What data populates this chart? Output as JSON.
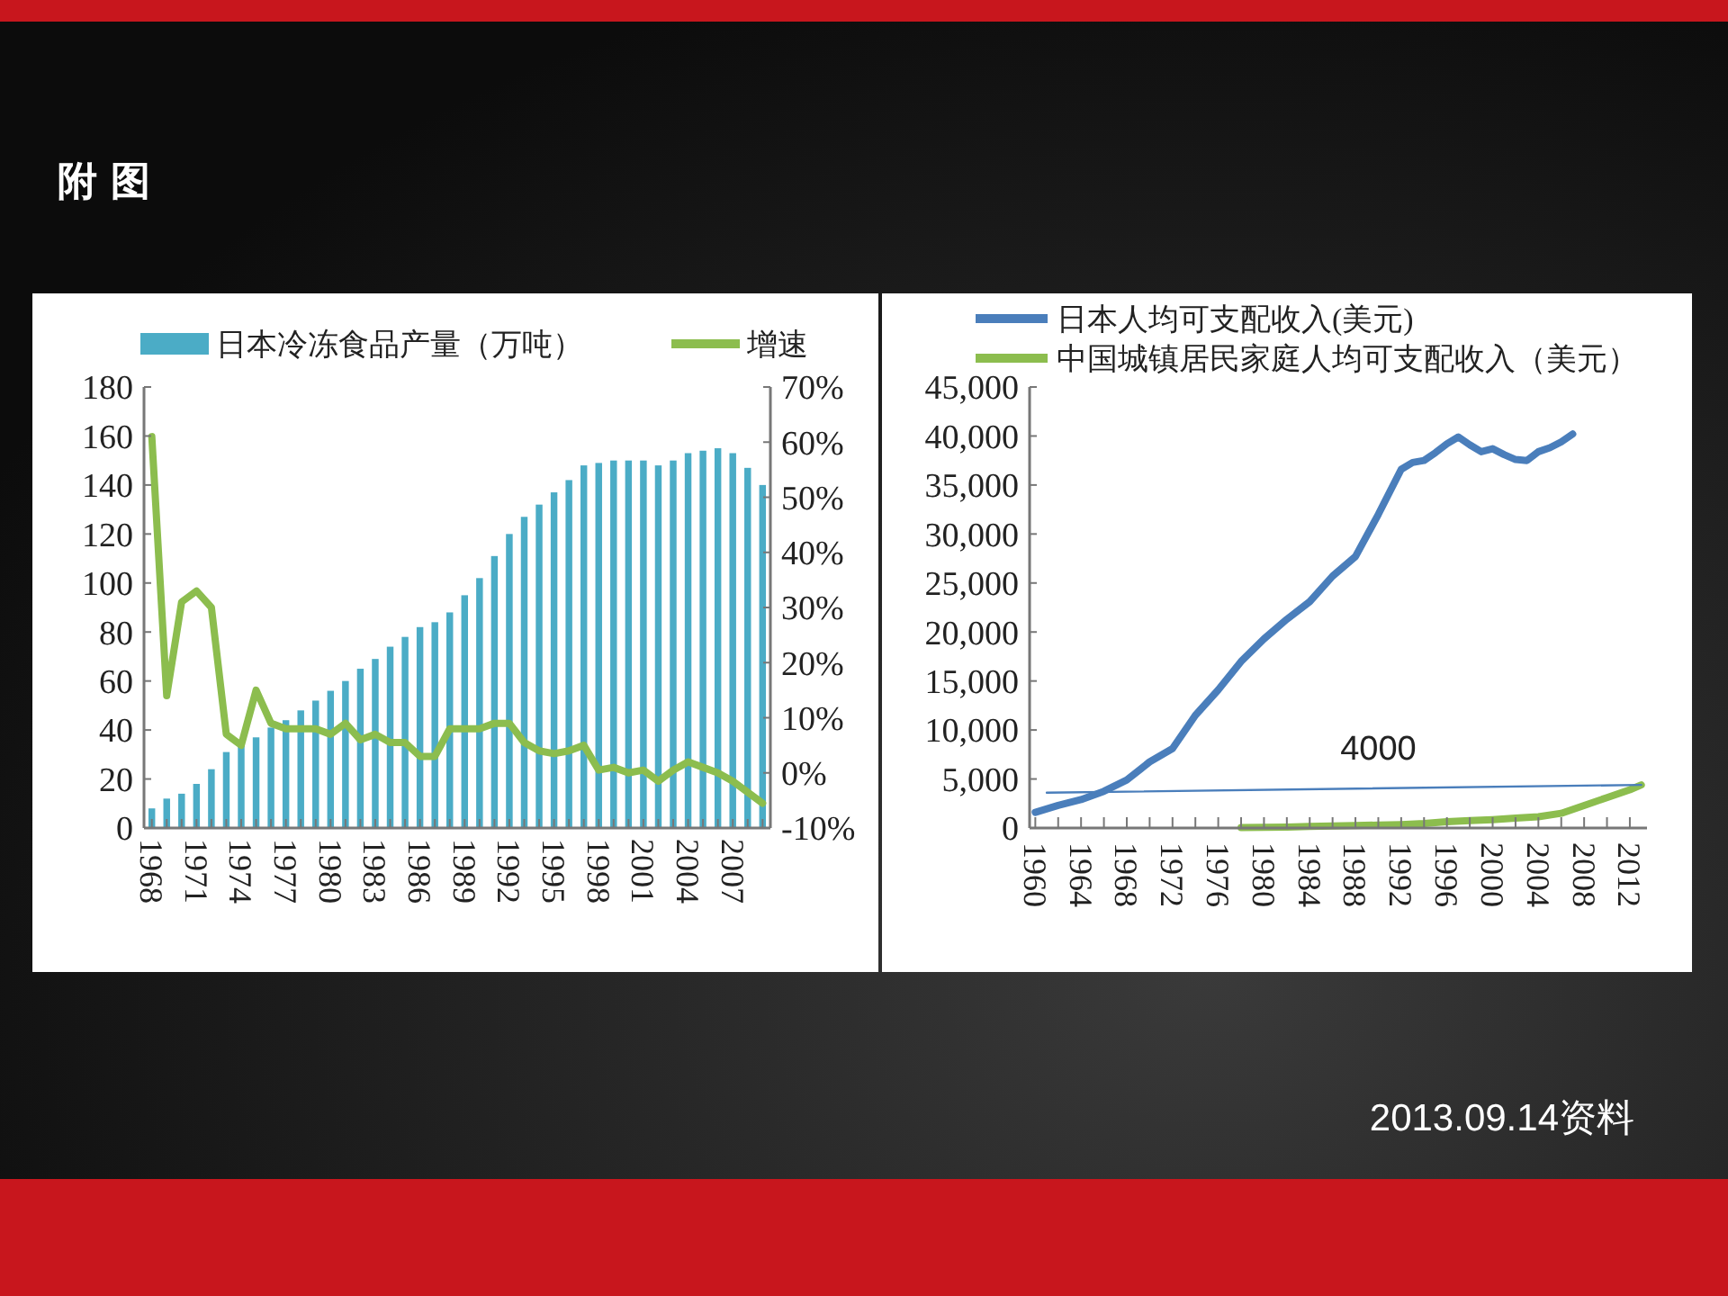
{
  "chart_data": [
    {
      "type": "bar",
      "title": "附 图",
      "categories": [
        "1968",
        null,
        null,
        "1971",
        null,
        null,
        "1974",
        null,
        null,
        "1977",
        null,
        null,
        "1980",
        null,
        null,
        "1983",
        null,
        null,
        "1986",
        null,
        null,
        "1989",
        null,
        null,
        "1992",
        null,
        null,
        "1995",
        null,
        null,
        "1998",
        null,
        null,
        "2001",
        null,
        null,
        "2004",
        null,
        null,
        "2007",
        null,
        null
      ],
      "series": [
        {
          "name": "日本冷冻食品产量（万吨）",
          "color": "#4bacc6",
          "values": [
            8,
            12,
            14,
            18,
            24,
            31,
            34,
            37,
            41,
            44,
            48,
            52,
            56,
            60,
            65,
            69,
            74,
            78,
            82,
            84,
            88,
            95,
            102,
            111,
            120,
            127,
            132,
            137,
            142,
            148,
            149,
            150,
            150,
            150,
            148,
            150,
            153,
            154,
            155,
            153,
            147,
            140
          ]
        },
        {
          "name": "增速",
          "type": "line",
          "axis": "y2",
          "color": "#8cbd4e",
          "values": [
            61,
            14,
            31,
            33,
            30,
            7,
            5,
            15,
            9,
            8,
            8,
            8,
            7,
            9,
            6,
            7,
            5.5,
            5.5,
            3,
            3,
            8,
            8,
            8,
            9,
            9,
            5.5,
            4,
            3.5,
            4,
            5,
            0.5,
            1,
            0,
            0.5,
            -1.5,
            0.5,
            2,
            1,
            0,
            -1.5,
            -3.5,
            -5.5
          ]
        }
      ],
      "ylim": [
        0,
        180
      ],
      "yticks": [
        0,
        20,
        40,
        60,
        80,
        100,
        120,
        140,
        160,
        180
      ],
      "y2lim": [
        -10,
        70
      ],
      "y2ticks": [
        {
          "value": -10,
          "label": "-10%"
        },
        {
          "value": 0,
          "label": "0%"
        },
        {
          "value": 10,
          "label": "10%"
        },
        {
          "value": 20,
          "label": "20%"
        },
        {
          "value": 30,
          "label": "30%"
        },
        {
          "value": 40,
          "label": "40%"
        },
        {
          "value": 50,
          "label": "50%"
        },
        {
          "value": 60,
          "label": "60%"
        },
        {
          "value": 70,
          "label": "70%"
        }
      ],
      "legend": "top"
    },
    {
      "type": "line",
      "annotations": [
        {
          "text": "4000",
          "x": 1990,
          "y": 4000
        },
        "2013.09.14资料"
      ],
      "series": [
        {
          "name": "日本人均可支配收入(美元)",
          "color": "#4a7ebb",
          "x": [
            1960,
            1962,
            1964,
            1966,
            1968,
            1970,
            1972,
            1974,
            1976,
            1978,
            1980,
            1982,
            1984,
            1986,
            1988,
            1990,
            1992,
            1993,
            1994,
            1995,
            1996,
            1997,
            1998,
            1999,
            2000,
            2001,
            2002,
            2003,
            2004,
            2005,
            2006,
            2007
          ],
          "values": [
            1600,
            2300,
            2900,
            3750,
            4900,
            6750,
            8100,
            11500,
            14100,
            17000,
            19300,
            21300,
            23100,
            25700,
            27700,
            32000,
            36600,
            37300,
            37500,
            38300,
            39200,
            39900,
            39100,
            38400,
            38700,
            38100,
            37600,
            37500,
            38400,
            38800,
            39400,
            40200
          ]
        },
        {
          "name": "中国城镇居民家庭人均可支配收入（美元）",
          "color": "#8cbd4e",
          "x": [
            1978,
            1980,
            1982,
            1984,
            1986,
            1988,
            1990,
            1992,
            1994,
            1996,
            1998,
            2000,
            2002,
            2004,
            2006,
            2008,
            2010,
            2012,
            2013
          ],
          "values": [
            50,
            80,
            100,
            150,
            200,
            250,
            300,
            350,
            450,
            650,
            750,
            850,
            1000,
            1150,
            1500,
            2300,
            3100,
            3900,
            4400
          ]
        },
        {
          "color": "#4a7ebb",
          "x": [
            1961,
            2013
          ],
          "values": [
            3600,
            4400
          ]
        }
      ],
      "xlim": [
        1959.5,
        2013.5
      ],
      "xticks": [
        1960,
        {
          "value": 1962,
          "label": null
        },
        1964,
        {
          "value": 1966,
          "label": null
        },
        1968,
        {
          "value": 1970,
          "label": null
        },
        1972,
        {
          "value": 1974,
          "label": null
        },
        1976,
        {
          "value": 1978,
          "label": null
        },
        1980,
        {
          "value": 1982,
          "label": null
        },
        1984,
        {
          "value": 1986,
          "label": null
        },
        1988,
        {
          "value": 1990,
          "label": null
        },
        1992,
        {
          "value": 1994,
          "label": null
        },
        1996,
        {
          "value": 1998,
          "label": null
        },
        2000,
        {
          "value": 2002,
          "label": null
        },
        2004,
        {
          "value": 2006,
          "label": null
        },
        2008,
        {
          "value": 2010,
          "label": null
        },
        2012
      ],
      "ylim": [
        0,
        45000
      ],
      "yticks": [
        0,
        {
          "value": 5000,
          "label": "5,000"
        },
        {
          "value": 10000,
          "label": "10,000"
        },
        {
          "value": 15000,
          "label": "15,000"
        },
        {
          "value": 20000,
          "label": "20,000"
        },
        {
          "value": 25000,
          "label": "25,000"
        },
        {
          "value": 30000,
          "label": "30,000"
        },
        {
          "value": 35000,
          "label": "35,000"
        },
        {
          "value": 40000,
          "label": "40,000"
        },
        {
          "value": 45000,
          "label": "45,000"
        }
      ],
      "legend": "top left"
    }
  ]
}
